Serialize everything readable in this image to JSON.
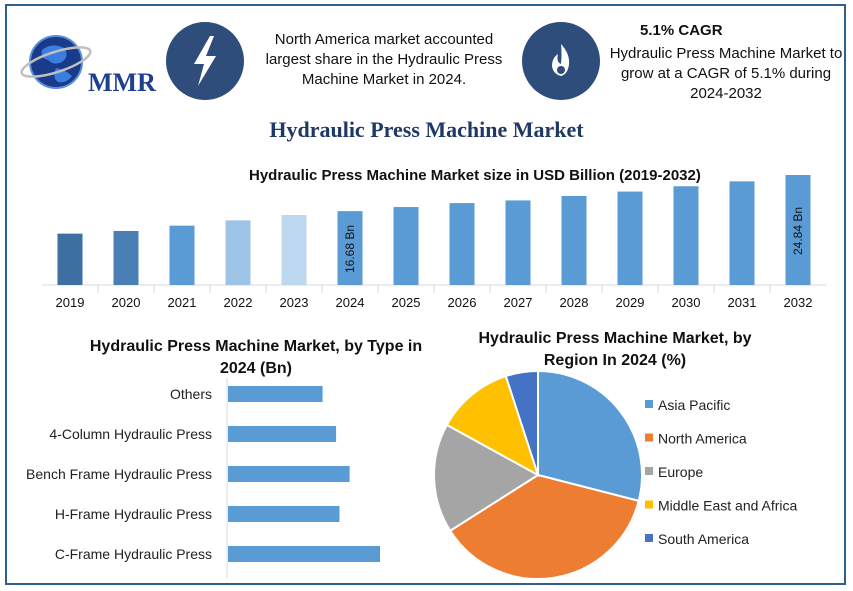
{
  "header": {
    "logo_text": "MMR",
    "fact1_text": "North America market accounted largest share in the Hydraulic Press Machine Market in 2024.",
    "fact2_title": "5.1% CAGR",
    "fact2_text": "Hydraulic Press Machine Market to grow at a CAGR of 5.1% during 2024-2032",
    "icon1": "lightning-bolt-icon",
    "icon2": "flame-icon"
  },
  "main_title": "Hydraulic Press Machine Market",
  "chart_data": [
    {
      "type": "bar",
      "title": "Hydraulic Press Machine Market size in USD Billion (2019-2032)",
      "categories": [
        "2019",
        "2020",
        "2021",
        "2022",
        "2023",
        "2024",
        "2025",
        "2026",
        "2027",
        "2028",
        "2029",
        "2030",
        "2031",
        "2032"
      ],
      "values": [
        11.6,
        12.2,
        13.4,
        14.6,
        15.8,
        16.68,
        17.6,
        18.5,
        19.1,
        20.1,
        21.1,
        22.3,
        23.4,
        24.84
      ],
      "data_labels": {
        "5": "16.68 Bn",
        "13": "24.84 Bn"
      },
      "bar_colors": [
        "#3d6fa3",
        "#4a7fb5",
        "#5b9bd5",
        "#9dc3e6",
        "#bdd7ee",
        "#5b9bd5",
        "#5b9bd5",
        "#5b9bd5",
        "#5b9bd5",
        "#5b9bd5",
        "#5b9bd5",
        "#5b9bd5",
        "#5b9bd5",
        "#5b9bd5"
      ],
      "ylim": [
        0,
        26
      ]
    },
    {
      "type": "bar",
      "orientation": "horizontal",
      "title": "Hydraulic Press Machine Market, by Type in 2024 (Bn)",
      "categories": [
        "Others",
        "4-Column Hydraulic Press",
        "Bench Frame Hydraulic Press",
        "H-Frame Hydraulic Press",
        "C-Frame Hydraulic Press"
      ],
      "values": [
        2.8,
        3.2,
        3.6,
        3.3,
        4.5
      ],
      "color": "#5b9bd5",
      "xlim": [
        0,
        5
      ]
    },
    {
      "type": "pie",
      "title": "Hydraulic Press Machine Market, by Region In 2024 (%)",
      "labels": [
        "Asia Pacific",
        "North America",
        "Europe",
        "Middle East and Africa",
        "South America"
      ],
      "values": [
        29,
        37,
        17,
        12,
        5
      ],
      "colors": [
        "#5b9bd5",
        "#ed7d31",
        "#a5a5a5",
        "#ffc000",
        "#4472c4"
      ],
      "legend_position": "right"
    }
  ]
}
